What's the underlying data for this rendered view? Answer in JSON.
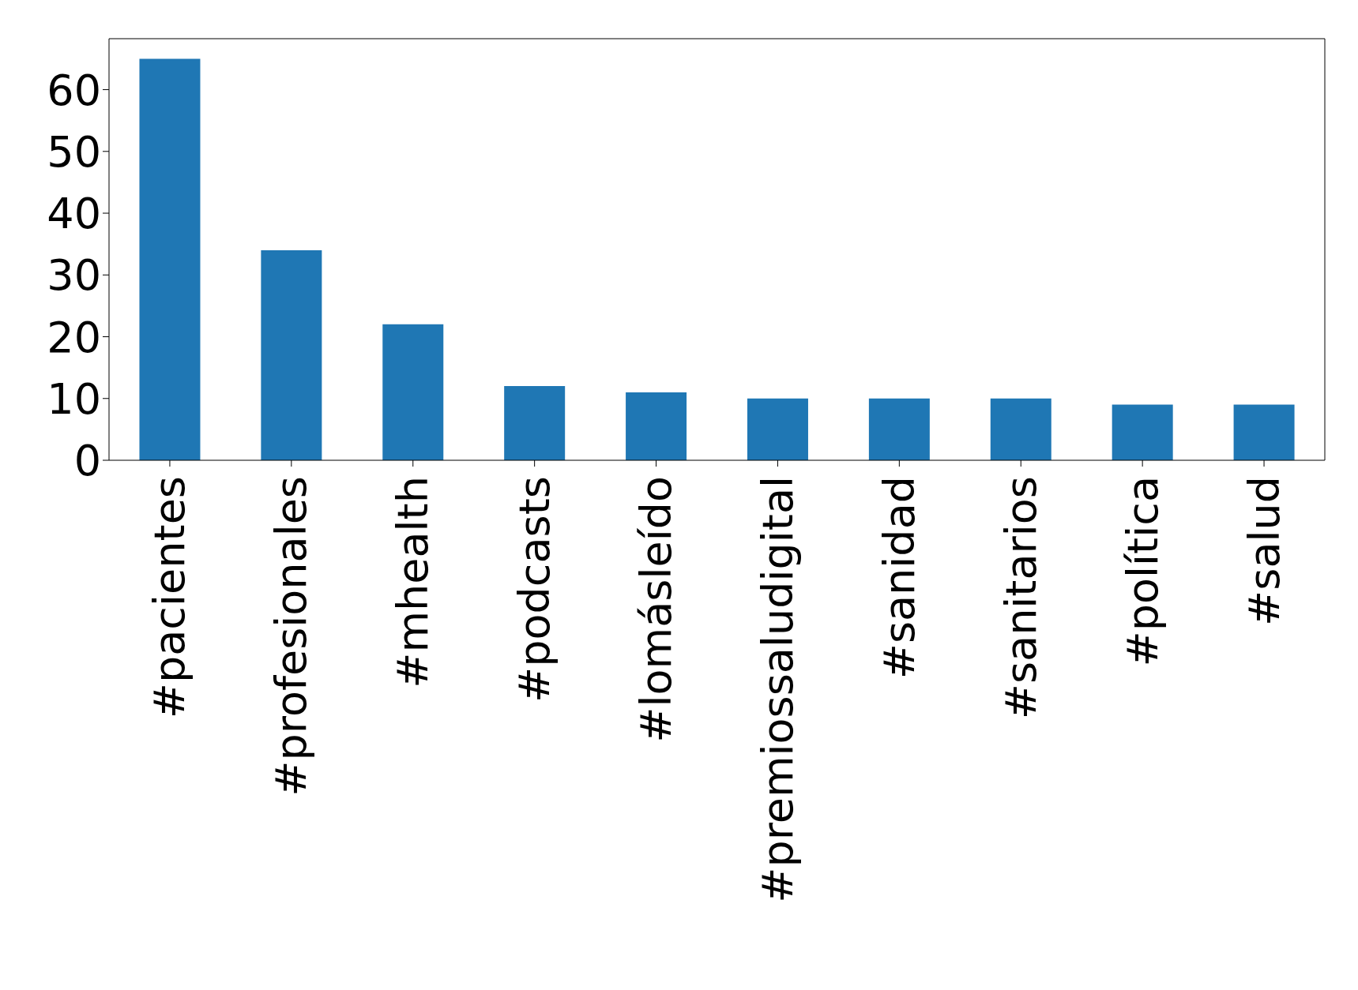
{
  "chart_data": {
    "type": "bar",
    "categories": [
      "#pacientes",
      "#profesionales",
      "#mhealth",
      "#podcasts",
      "#lomásleído",
      "#premiossaludigital",
      "#sanidad",
      "#sanitarios",
      "#política",
      "#salud"
    ],
    "values": [
      65,
      34,
      22,
      12,
      11,
      10,
      10,
      10,
      9,
      9
    ],
    "color": "#1f77b4",
    "ylim": [
      0,
      68.25
    ],
    "yticks": [
      0,
      10,
      20,
      30,
      40,
      50,
      60
    ],
    "grid": false
  }
}
